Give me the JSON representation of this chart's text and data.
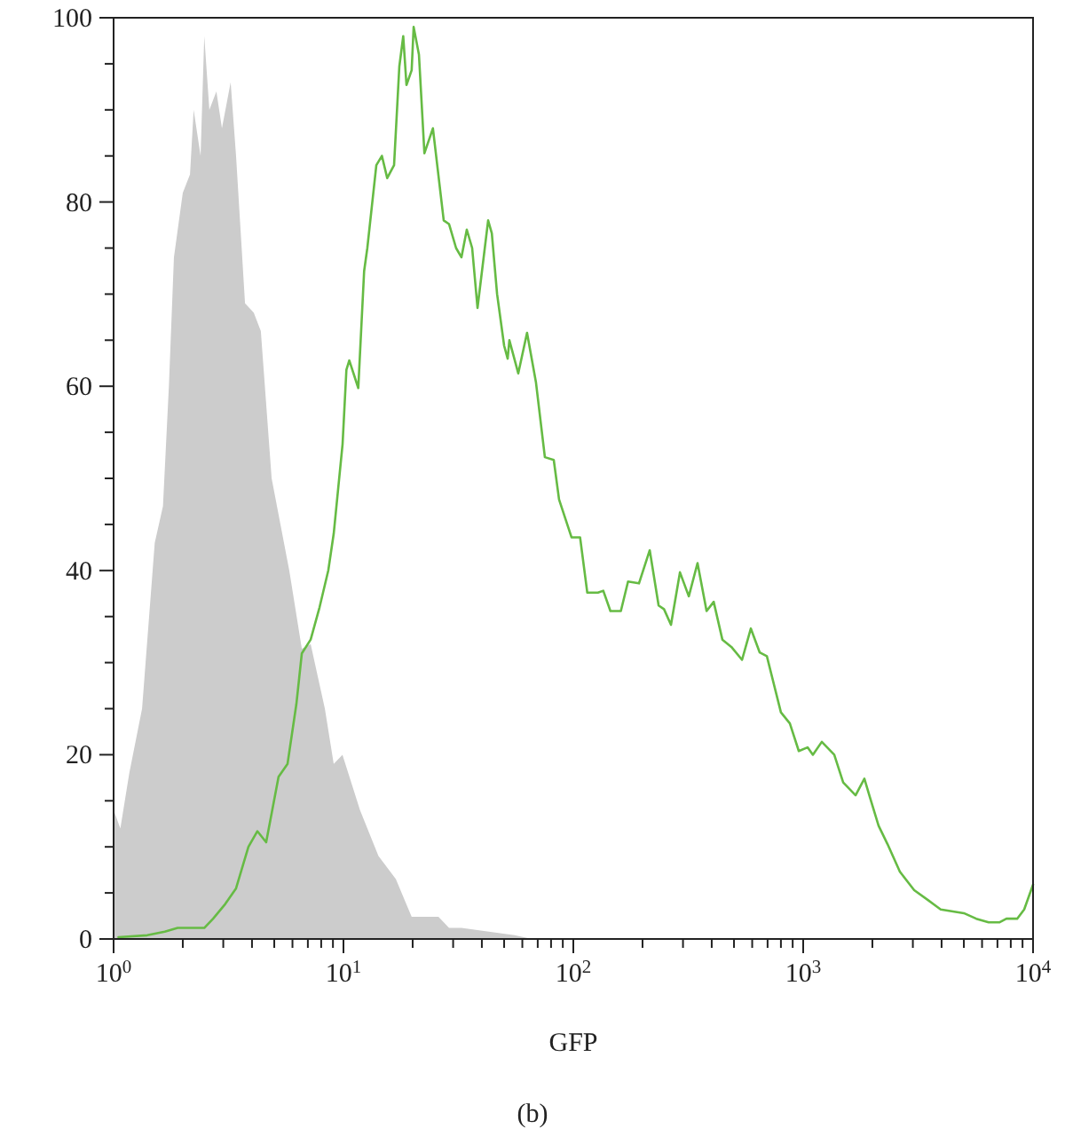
{
  "chart_data": {
    "type": "line",
    "xlabel": "GFP",
    "annotations": [
      "(b)"
    ],
    "log": "x",
    "grid": false,
    "xlim": [
      1,
      10000
    ],
    "ylim": [
      0,
      100
    ],
    "xticks": [
      {
        "value": 1,
        "label": "10$^{0}$"
      },
      {
        "value": 2,
        "label": null
      },
      {
        "value": 3,
        "label": null
      },
      {
        "value": 4,
        "label": null
      },
      {
        "value": 5,
        "label": null
      },
      {
        "value": 6,
        "label": null
      },
      {
        "value": 7,
        "label": null
      },
      {
        "value": 8,
        "label": null
      },
      {
        "value": 9,
        "label": null
      },
      {
        "value": 10,
        "label": "10$^{1}$"
      },
      {
        "value": 20,
        "label": null
      },
      {
        "value": 30,
        "label": null
      },
      {
        "value": 40,
        "label": null
      },
      {
        "value": 50,
        "label": null
      },
      {
        "value": 60,
        "label": null
      },
      {
        "value": 70,
        "label": null
      },
      {
        "value": 80,
        "label": null
      },
      {
        "value": 90,
        "label": null
      },
      {
        "value": 100,
        "label": "10$^{2}$"
      },
      {
        "value": 200,
        "label": null
      },
      {
        "value": 300,
        "label": null
      },
      {
        "value": 400,
        "label": null
      },
      {
        "value": 500,
        "label": null
      },
      {
        "value": 600,
        "label": null
      },
      {
        "value": 700,
        "label": null
      },
      {
        "value": 800,
        "label": null
      },
      {
        "value": 900,
        "label": null
      },
      {
        "value": 1000,
        "label": "10$^{3}$"
      },
      {
        "value": 2000,
        "label": null
      },
      {
        "value": 3000,
        "label": null
      },
      {
        "value": 4000,
        "label": null
      },
      {
        "value": 5000,
        "label": null
      },
      {
        "value": 6000,
        "label": null
      },
      {
        "value": 7000,
        "label": null
      },
      {
        "value": 8000,
        "label": null
      },
      {
        "value": 9000,
        "label": null
      },
      {
        "value": 10000,
        "label": "10$^{4}$"
      }
    ],
    "yticks": [
      0,
      {
        "value": 5,
        "label": null
      },
      {
        "value": 10,
        "label": null
      },
      {
        "value": 15,
        "label": null
      },
      20,
      {
        "value": 25,
        "label": null
      },
      {
        "value": 30,
        "label": null
      },
      {
        "value": 35,
        "label": null
      },
      40,
      {
        "value": 45,
        "label": null
      },
      {
        "value": 50,
        "label": null
      },
      {
        "value": 55,
        "label": null
      },
      60,
      {
        "value": 65,
        "label": null
      },
      {
        "value": 70,
        "label": null
      },
      {
        "value": 75,
        "label": null
      },
      80,
      {
        "value": 85,
        "label": null
      },
      {
        "value": 90,
        "label": null
      },
      {
        "value": 95,
        "label": null
      },
      100
    ],
    "series": [
      {
        "type": "area",
        "color": "#cccccc",
        "x": [
          1,
          1.07,
          1.17,
          1.33,
          1.51,
          1.64,
          1.74,
          1.83,
          2.0,
          2.15,
          2.23,
          2.39,
          2.48,
          2.61,
          2.8,
          2.96,
          3.23,
          3.41,
          3.73,
          4.07,
          4.37,
          4.87,
          5.81,
          6.59,
          7.2,
          8.3,
          9.07,
          9.9,
          11.8,
          14.2,
          16.9,
          19.8,
          25.9,
          28.8,
          32.6,
          55.6,
          66
        ],
        "values": [
          14,
          12,
          18,
          25,
          43,
          47,
          60,
          74,
          81,
          83,
          90,
          85,
          98,
          90,
          92,
          88,
          93,
          85,
          69,
          68,
          66,
          50,
          40,
          31.5,
          32,
          25,
          19,
          20,
          14,
          9,
          6.5,
          2.4,
          2.4,
          1.2,
          1.2,
          0.4,
          0
        ]
      },
      {
        "type": "line",
        "color": "#66bb44",
        "x": [
          1.05,
          1.4,
          1.67,
          1.9,
          2.48,
          2.71,
          3.06,
          3.41,
          3.86,
          4.22,
          4.61,
          5.22,
          5.71,
          6.24,
          6.59,
          7.2,
          7.87,
          8.59,
          9.07,
          9.91,
          10.3,
          10.6,
          11.6,
          12.3,
          12.7,
          13.9,
          14.7,
          15.5,
          16.6,
          17.5,
          18.2,
          18.8,
          19.8,
          20.2,
          21.3,
          22.5,
          24.5,
          27.3,
          28.8,
          30.9,
          32.6,
          34.4,
          36.3,
          38.3,
          42.6,
          44.2,
          46.6,
          50,
          51.8,
          52.7,
          57.6,
          62.9,
          68.8,
          75.2,
          82.2,
          86.7,
          98.2,
          107,
          115,
          128,
          135,
          145,
          161,
          173,
          193,
          215,
          235,
          248,
          266,
          291,
          318,
          347,
          380,
          408,
          445,
          487,
          542,
          592,
          647,
          695,
          800,
          875,
          957,
          1045,
          1102,
          1205,
          1365,
          1493,
          1690,
          1846,
          1950,
          2128,
          2327,
          2635,
          3040,
          3500,
          3965,
          5000,
          5660,
          6410,
          7130,
          7660,
          8530,
          9150,
          10000
        ],
        "values": [
          0.2,
          0.4,
          0.8,
          1.2,
          1.2,
          2.2,
          3.8,
          5.5,
          10,
          11.7,
          10.5,
          17.6,
          19,
          25.5,
          31,
          32.5,
          36,
          40,
          44,
          53.7,
          61.8,
          62.8,
          59.8,
          72.5,
          75,
          84,
          85,
          82.6,
          84,
          94.7,
          98,
          92.7,
          94.3,
          99,
          96,
          85.3,
          88,
          78,
          77.6,
          75,
          74,
          77,
          75,
          68.5,
          78,
          76.6,
          70,
          64.4,
          63,
          65,
          61.4,
          65.8,
          60.4,
          52.3,
          52,
          47.7,
          43.6,
          43.6,
          37.6,
          37.6,
          37.8,
          35.6,
          35.6,
          38.8,
          38.6,
          42.2,
          36.2,
          35.8,
          34.1,
          39.8,
          37.2,
          40.8,
          35.6,
          36.6,
          32.5,
          31.7,
          30.3,
          33.7,
          31.1,
          30.7,
          24.6,
          23.4,
          20.4,
          20.8,
          20,
          21.4,
          20,
          17,
          15.6,
          17.4,
          15.4,
          12.3,
          10.3,
          7.3,
          5.3,
          4.2,
          3.2,
          2.8,
          2.2,
          1.8,
          1.8,
          2.2,
          2.2,
          3.2,
          5.9
        ]
      }
    ]
  }
}
